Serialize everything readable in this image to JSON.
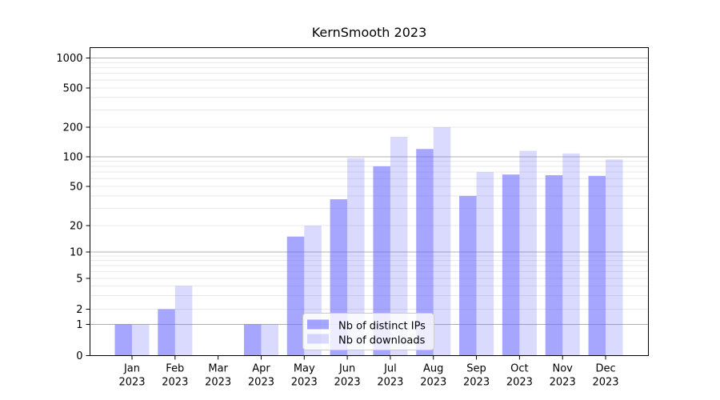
{
  "colors": {
    "bar_base": "#6666ff",
    "bar_fill_distinct_ips": "rgba(102,102,255,0.58)",
    "bar_fill_downloads": "rgba(102,102,255,0.24)",
    "distinct_ips_flat_hex": "#a7a7fa",
    "downloads_flat_hex": "#dbdbfb",
    "grid_major": "#b0b0b0",
    "grid_minor": "#e8e8e8",
    "axis": "#000000",
    "legend_border": "#cccccc",
    "legend_background": "rgba(255,255,255,0.8)"
  },
  "chart_data": {
    "type": "bar",
    "title": "KernSmooth 2023",
    "categories": [
      "Jan",
      "Feb",
      "Mar",
      "Apr",
      "May",
      "Jun",
      "Jul",
      "Aug",
      "Sep",
      "Oct",
      "Nov",
      "Dec"
    ],
    "year_label": "2023",
    "series": [
      {
        "name": "Nb of distinct IPs",
        "values": [
          1,
          2,
          0,
          1,
          15,
          37,
          80,
          120,
          40,
          66,
          65,
          64
        ]
      },
      {
        "name": "Nb of downloads",
        "values": [
          1,
          4,
          0,
          1,
          20,
          97,
          160,
          200,
          70,
          115,
          108,
          94
        ]
      }
    ],
    "y_axis": {
      "scale": "log",
      "tick_values": [
        0,
        1,
        2,
        5,
        10,
        20,
        50,
        100,
        200,
        500,
        1000
      ],
      "tick_labels": [
        "0",
        "1",
        "2",
        "5",
        "10",
        "20",
        "50",
        "100",
        "200",
        "500",
        "1000"
      ],
      "range": [
        0,
        1000
      ]
    },
    "xlabel": "",
    "ylabel": "",
    "grid": true,
    "legend_position": "lower center"
  }
}
